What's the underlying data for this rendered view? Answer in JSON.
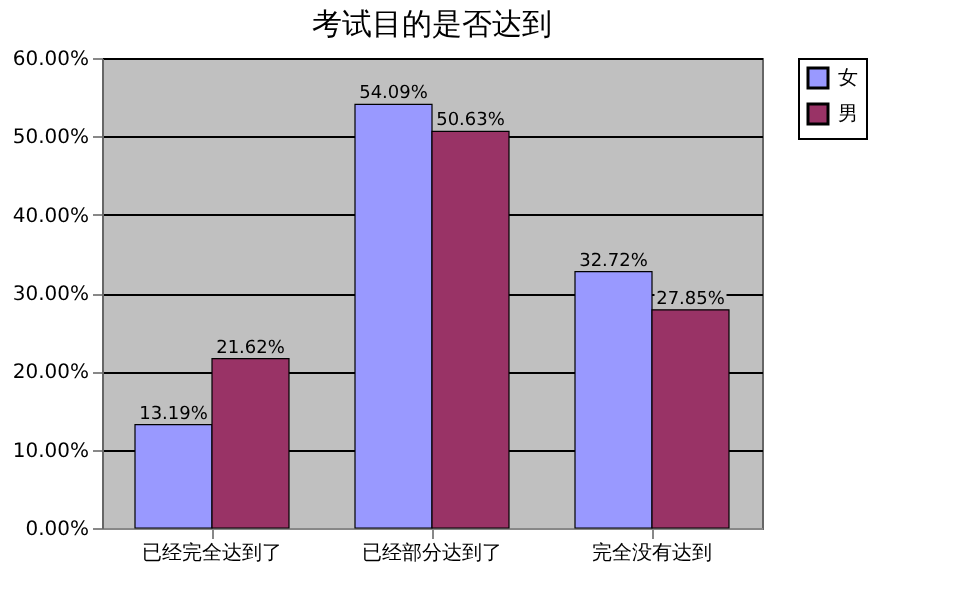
{
  "chart_data": {
    "type": "bar",
    "title": "考试目的是否达到",
    "categories": [
      "已经完全达到了",
      "已经部分达到了",
      "完全没有达到"
    ],
    "series": [
      {
        "name": "女",
        "color": "#9999ff",
        "values": [
          13.19,
          54.09,
          32.72
        ],
        "value_labels": [
          "13.19%",
          "54.09%",
          "32.72%"
        ]
      },
      {
        "name": "男",
        "color": "#993366",
        "values": [
          21.62,
          50.63,
          27.85
        ],
        "value_labels": [
          "21.62%",
          "50.63%",
          "27.85%"
        ]
      }
    ],
    "ylim": [
      0,
      60
    ],
    "yticks": [
      {
        "value": 0,
        "label": "0.00%"
      },
      {
        "value": 10,
        "label": "10.00%"
      },
      {
        "value": 20,
        "label": "20.00%"
      },
      {
        "value": 30,
        "label": "30.00%"
      },
      {
        "value": 40,
        "label": "40.00%"
      },
      {
        "value": 50,
        "label": "50.00%"
      },
      {
        "value": 60,
        "label": "60.00%"
      }
    ],
    "grid": "y",
    "legend": "right"
  }
}
